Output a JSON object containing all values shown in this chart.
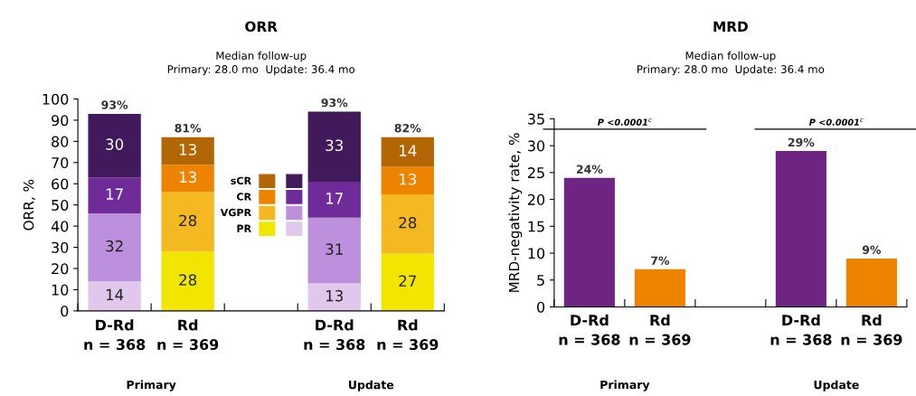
{
  "chart_data": [
    {
      "type": "bar",
      "title": "ORR",
      "subtitle": "Median follow-up\nPrimary: 28.0 mo  Update: 36.4 mo",
      "ylabel": "ORR, %",
      "stacked": true,
      "categories": [
        "D-Rd\nn = 368",
        "Rd\nn = 369",
        null,
        "D-Rd\nn = 368",
        "Rd\nn = 369"
      ],
      "series": [
        {
          "name": "PR",
          "colors": [
            "#e0c8ec",
            "#f2e600",
            null,
            "#e0c8ec",
            "#f2e600"
          ],
          "values": [
            14,
            28,
            null,
            13,
            27
          ]
        },
        {
          "name": "VGPR",
          "colors": [
            "#bd90dd",
            "#f4b920",
            null,
            "#bd90dd",
            "#f4b920"
          ],
          "values": [
            32,
            28,
            null,
            31,
            28
          ]
        },
        {
          "name": "CR",
          "colors": [
            "#6f2c99",
            "#ee8300",
            null,
            "#6f2c99",
            "#ee8300"
          ],
          "values": [
            17,
            13,
            null,
            17,
            13
          ]
        },
        {
          "name": "sCR",
          "colors": [
            "#401a5a",
            "#b36604",
            null,
            "#401a5a",
            "#b36604"
          ],
          "values": [
            30,
            13,
            null,
            33,
            14
          ]
        }
      ],
      "totals": [
        "93%",
        "81%",
        null,
        "93%",
        "82%"
      ],
      "data_labels": true,
      "ylim": [
        0,
        100
      ],
      "yticks": [
        0,
        10,
        20,
        30,
        40,
        50,
        60,
        70,
        80,
        90,
        100
      ],
      "grid": false,
      "legend": "center",
      "annotations": [
        "Primary",
        "Update"
      ]
    },
    {
      "type": "bar",
      "title": "MRD",
      "subtitle": "Median follow-up\nPrimary: 28.0 mo  Update: 36.4 mo",
      "ylabel": "MRD-negativity rate, %",
      "categories": [
        "D-Rd\nn = 368",
        "Rd\nn = 369",
        null,
        "D-Rd\nn = 368",
        "Rd\nn = 369"
      ],
      "values": [
        24,
        7,
        null,
        29,
        9
      ],
      "colors": [
        "#6d2483",
        "#ee8300",
        null,
        "#6d2483",
        "#ee8300"
      ],
      "value_labels": [
        "24%",
        "7%",
        null,
        "29%",
        "9%"
      ],
      "ylim": [
        0,
        35
      ],
      "yticks": [
        0,
        5,
        10,
        15,
        20,
        25,
        30,
        35
      ],
      "grid": false,
      "legend": false,
      "annotations": [
        "P <0.0001$^{c}$",
        "P <0.0001$^{c}$",
        "Primary",
        "Update"
      ]
    }
  ]
}
